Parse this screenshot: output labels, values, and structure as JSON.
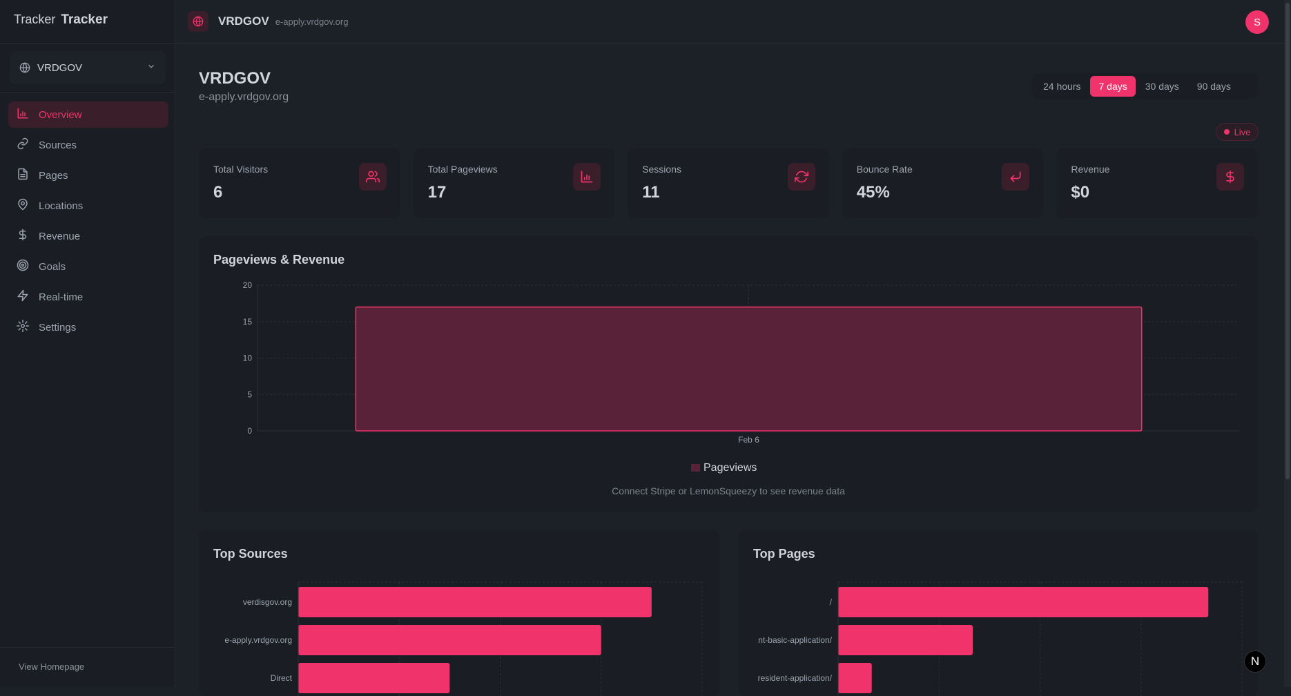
{
  "sidebar": {
    "logo_overlay": "Tracker",
    "logo": "Tracker",
    "site_selector": "VRDGOV",
    "items": [
      {
        "label": "Overview",
        "icon": "bar-chart-icon",
        "active": true
      },
      {
        "label": "Sources",
        "icon": "link-icon"
      },
      {
        "label": "Pages",
        "icon": "file-text-icon"
      },
      {
        "label": "Locations",
        "icon": "map-pin-icon"
      },
      {
        "label": "Revenue",
        "icon": "dollar-icon"
      },
      {
        "label": "Goals",
        "icon": "target-icon"
      },
      {
        "label": "Real-time",
        "icon": "zap-icon"
      },
      {
        "label": "Settings",
        "icon": "gear-icon"
      }
    ],
    "view_homepage": "View Homepage"
  },
  "header": {
    "title": "VRDGOV",
    "domain": "e-apply.vrdgov.org",
    "avatar": "S"
  },
  "page": {
    "title": "VRDGOV",
    "subtitle": "e-apply.vrdgov.org"
  },
  "ranges": [
    "24 hours",
    "7 days",
    "30 days",
    "90 days"
  ],
  "active_range": "7 days",
  "live": "Live",
  "stats": [
    {
      "label": "Total Visitors",
      "value": "6",
      "icon": "users-icon"
    },
    {
      "label": "Total Pageviews",
      "value": "17",
      "icon": "bar-chart-icon"
    },
    {
      "label": "Sessions",
      "value": "11",
      "icon": "refresh-icon"
    },
    {
      "label": "Bounce Rate",
      "value": "45%",
      "icon": "return-icon"
    },
    {
      "label": "Revenue",
      "value": "$0",
      "icon": "dollar-icon"
    }
  ],
  "colors": {
    "accent": "#f0336a",
    "bar_fill": "#5a2238"
  },
  "chart_data": [
    {
      "type": "bar",
      "title": "Pageviews & Revenue",
      "categories": [
        "Feb 6"
      ],
      "series": [
        {
          "name": "Pageviews",
          "values": [
            17
          ]
        }
      ],
      "ylim": [
        0,
        20
      ],
      "yticks": [
        "0",
        "5",
        "10",
        "15",
        "20"
      ],
      "grid": true,
      "legend": "bottom",
      "note": "Connect Stripe or LemonSqueezy to see revenue data"
    },
    {
      "type": "bar",
      "orientation": "horizontal",
      "title": "Top Sources",
      "categories": [
        "verdisgov.org",
        "e-apply.vrdgov.org",
        "Direct"
      ],
      "values": [
        7,
        6,
        3
      ],
      "xlim": [
        0,
        8
      ]
    },
    {
      "type": "bar",
      "orientation": "horizontal",
      "title": "Top Pages",
      "categories": [
        "/",
        "nt-basic-application/",
        "resident-application/"
      ],
      "values": [
        11,
        4,
        1
      ],
      "xlim": [
        0,
        12
      ]
    }
  ],
  "dev_badge": "N"
}
